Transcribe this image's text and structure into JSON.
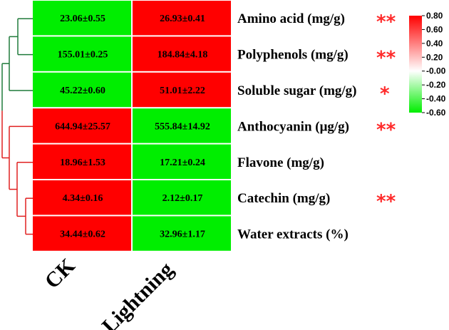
{
  "chart_data": {
    "type": "heatmap",
    "columns": [
      "CK",
      "Lightning"
    ],
    "rows": [
      {
        "label": "Amino acid (mg/g)",
        "significance": "**",
        "cells": [
          {
            "text": "23.06±0.55",
            "color": "green"
          },
          {
            "text": "26.93±0.41",
            "color": "red"
          }
        ]
      },
      {
        "label": "Polyphenols (mg/g)",
        "significance": "**",
        "cells": [
          {
            "text": "155.01±0.25",
            "color": "green"
          },
          {
            "text": "184.84±4.18",
            "color": "red"
          }
        ]
      },
      {
        "label": "Soluble sugar (mg/g)",
        "significance": "*",
        "cells": [
          {
            "text": "45.22±0.60",
            "color": "green"
          },
          {
            "text": "51.01±2.22",
            "color": "red"
          }
        ]
      },
      {
        "label": "Anthocyanin (μg/g)",
        "significance": "**",
        "cells": [
          {
            "text": "644.94±25.57",
            "color": "red"
          },
          {
            "text": "555.84±14.92",
            "color": "green"
          }
        ]
      },
      {
        "label": "Flavone (mg/g)",
        "significance": "",
        "cells": [
          {
            "text": "18.96±1.53",
            "color": "red"
          },
          {
            "text": "17.21±0.24",
            "color": "green"
          }
        ]
      },
      {
        "label": "Catechin (mg/g)",
        "significance": "**",
        "cells": [
          {
            "text": "4.34±0.16",
            "color": "red"
          },
          {
            "text": "2.12±0.17",
            "color": "green"
          }
        ]
      },
      {
        "label": "Water extracts (%)",
        "significance": "",
        "cells": [
          {
            "text": "34.44±0.62",
            "color": "red"
          },
          {
            "text": "32.96±1.17",
            "color": "green"
          }
        ]
      }
    ],
    "colorbar": {
      "range": [
        -0.6,
        0.8
      ],
      "ticks": [
        "0.80",
        "0.60",
        "0.40",
        "0.20",
        "-0.00",
        "-0.20",
        "-0.40",
        "-0.60"
      ],
      "high_color": "#ff0000",
      "mid_color": "#ffffff",
      "low_color": "#00ee00"
    },
    "dendrogram": {
      "clusters": [
        {
          "name": "cluster-1",
          "rows": [
            0,
            1,
            2
          ],
          "color": "#1f7a3a"
        },
        {
          "name": "cluster-2",
          "rows": [
            3,
            4,
            5,
            6
          ],
          "color": "#e02020"
        }
      ]
    },
    "colors": {
      "red": "#ff0000",
      "green": "#00ee00",
      "star": "#ff2a2a"
    }
  }
}
